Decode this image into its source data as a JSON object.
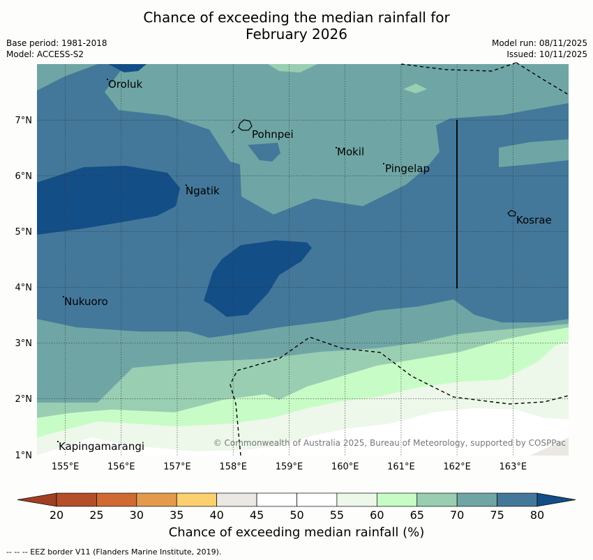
{
  "header": {
    "title_line1": "Chance of exceeding the median rainfall for",
    "title_line2": "February 2026",
    "base_period": "Base period: 1981-2018",
    "model": "Model: ACCESS-S2",
    "model_run": "Model run: 08/11/2025",
    "issued": "Issued: 10/11/2025"
  },
  "map": {
    "lat_labels": [
      "7°N",
      "6°N",
      "5°N",
      "4°N",
      "3°N",
      "2°N",
      "1°N"
    ],
    "lon_labels": [
      "155°E",
      "156°E",
      "157°E",
      "158°E",
      "159°E",
      "160°E",
      "161°E",
      "162°E",
      "163°E"
    ],
    "places": [
      "Oroluk",
      "Pohnpei",
      "Mokil",
      "Pingelap",
      "Ngatik",
      "Kosrae",
      "Nukuoro",
      "Kapingamarangi"
    ],
    "copyright": "© Commonwealth of Australia 2025, Bureau of Meteorology, supported by COSPPac"
  },
  "colorbar": {
    "ticks": [
      "20",
      "25",
      "30",
      "35",
      "40",
      "45",
      "50",
      "55",
      "60",
      "65",
      "70",
      "75",
      "80"
    ],
    "colors": [
      "#a23f22",
      "#b34f29",
      "#cf6a33",
      "#e49a4d",
      "#fdd06f",
      "#ebe8e4",
      "#ffffff",
      "#ffffff",
      "#edf7ea",
      "#c8fcc6",
      "#99ceb2",
      "#6fa6a5",
      "#43789a",
      "#144e87"
    ],
    "label": "Chance of exceeding median rainfall (%)"
  },
  "footer": {
    "eez_note": "--  --  -- EEZ border V11 (Flanders Marine Institute, 2019)."
  }
}
